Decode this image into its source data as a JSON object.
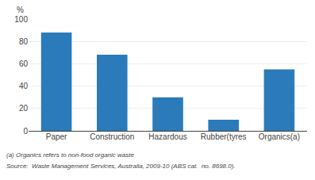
{
  "chart_data": {
    "type": "bar",
    "ylabel": "%",
    "categories": [
      "Paper",
      "Construction",
      "Hazardous",
      "Rubber(tyres",
      "Organics(a)"
    ],
    "values": [
      88,
      68,
      30,
      10,
      55
    ],
    "color": "#2b7bba",
    "ylim": [
      0,
      100
    ],
    "yticks": [
      0,
      20,
      40,
      60,
      80,
      100
    ],
    "grid": true,
    "annotations": [
      "(a) Organics refers to non-food organic waste",
      "Source:  Waste Management Services, Australia, 2009-10 (ABS cat.  no. 8698.0)."
    ]
  }
}
